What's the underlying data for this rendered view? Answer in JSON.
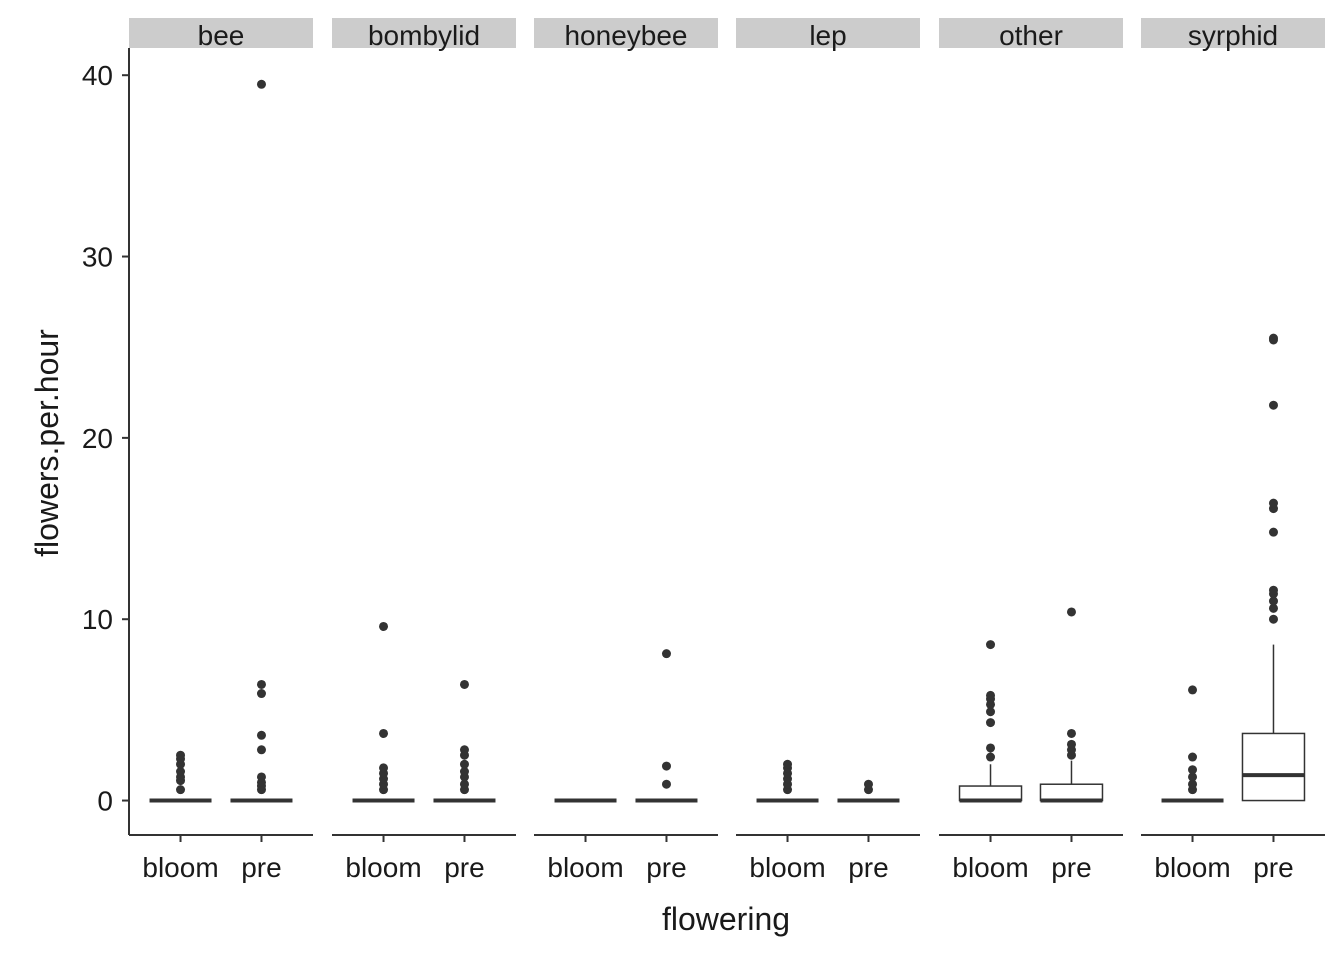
{
  "chart_data": {
    "type": "boxplot",
    "xlabel": "flowering",
    "ylabel": "flowers.per.hour",
    "ylim": [
      -1.9,
      41.5
    ],
    "yticks": [
      0,
      10,
      20,
      30,
      40
    ],
    "categories": [
      "bloom",
      "pre"
    ],
    "colors": {
      "strip": "#cccccc",
      "box": "#333333",
      "axis": "#333333"
    },
    "facets": [
      {
        "name": "bee",
        "groups": [
          {
            "category": "bloom",
            "q1": 0,
            "median": 0,
            "q3": 0,
            "whisker_low": 0,
            "whisker_high": 0,
            "outliers": [
              0.6,
              1.1,
              1.3,
              1.6,
              2.0,
              2.3,
              2.5
            ]
          },
          {
            "category": "pre",
            "q1": 0,
            "median": 0,
            "q3": 0,
            "whisker_low": 0,
            "whisker_high": 0,
            "outliers": [
              0.6,
              0.8,
              1.0,
              1.3,
              2.8,
              3.6,
              5.9,
              6.4,
              39.5
            ]
          }
        ]
      },
      {
        "name": "bombylid",
        "groups": [
          {
            "category": "bloom",
            "q1": 0,
            "median": 0,
            "q3": 0,
            "whisker_low": 0,
            "whisker_high": 0,
            "outliers": [
              0.6,
              0.9,
              1.2,
              1.5,
              1.8,
              3.7,
              9.6
            ]
          },
          {
            "category": "pre",
            "q1": 0,
            "median": 0,
            "q3": 0,
            "whisker_low": 0,
            "whisker_high": 0,
            "outliers": [
              0.6,
              0.9,
              1.3,
              1.6,
              2.0,
              2.5,
              2.8,
              6.4
            ]
          }
        ]
      },
      {
        "name": "honeybee",
        "groups": [
          {
            "category": "bloom",
            "q1": 0,
            "median": 0,
            "q3": 0,
            "whisker_low": 0,
            "whisker_high": 0,
            "outliers": []
          },
          {
            "category": "pre",
            "q1": 0,
            "median": 0,
            "q3": 0,
            "whisker_low": 0,
            "whisker_high": 0,
            "outliers": [
              0.9,
              1.9,
              8.1
            ]
          }
        ]
      },
      {
        "name": "lep",
        "groups": [
          {
            "category": "bloom",
            "q1": 0,
            "median": 0,
            "q3": 0,
            "whisker_low": 0,
            "whisker_high": 0,
            "outliers": [
              0.6,
              0.9,
              1.2,
              1.5,
              1.8,
              2.0
            ]
          },
          {
            "category": "pre",
            "q1": 0,
            "median": 0,
            "q3": 0,
            "whisker_low": 0,
            "whisker_high": 0,
            "outliers": [
              0.6,
              0.9
            ]
          }
        ]
      },
      {
        "name": "other",
        "groups": [
          {
            "category": "bloom",
            "q1": 0,
            "median": 0,
            "q3": 0.8,
            "whisker_low": 0,
            "whisker_high": 2.0,
            "outliers": [
              2.4,
              2.9,
              4.3,
              4.9,
              5.3,
              5.6,
              5.8,
              8.6
            ]
          },
          {
            "category": "pre",
            "q1": 0,
            "median": 0,
            "q3": 0.9,
            "whisker_low": 0,
            "whisker_high": 2.2,
            "outliers": [
              2.5,
              2.8,
              3.1,
              3.7,
              10.4
            ]
          }
        ]
      },
      {
        "name": "syrphid",
        "groups": [
          {
            "category": "bloom",
            "q1": 0,
            "median": 0,
            "q3": 0,
            "whisker_low": 0,
            "whisker_high": 0,
            "outliers": [
              0.6,
              0.9,
              1.3,
              1.7,
              2.4,
              6.1
            ]
          },
          {
            "category": "pre",
            "q1": 0,
            "median": 1.4,
            "q3": 3.7,
            "whisker_low": 0,
            "whisker_high": 8.6,
            "outliers": [
              10.0,
              10.6,
              11.0,
              11.4,
              11.6,
              14.8,
              16.1,
              16.4,
              21.8,
              25.4,
              25.5
            ]
          }
        ]
      }
    ]
  }
}
